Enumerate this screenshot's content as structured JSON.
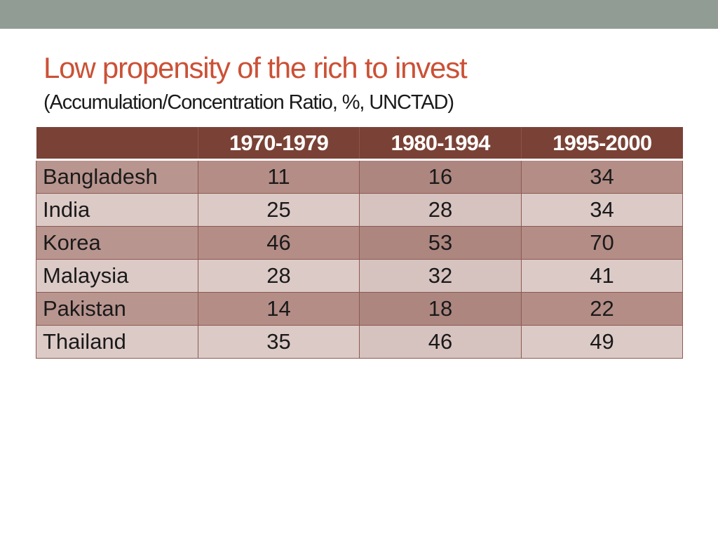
{
  "slide": {
    "title": "Low propensity of the rich to invest",
    "subtitle": "(Accumulation/Concentration Ratio, %, UNCTAD)"
  },
  "table": {
    "headers": [
      "",
      "1970-1979",
      "1980-1994",
      "1995-2000"
    ],
    "rows": [
      [
        "Bangladesh",
        "11",
        "16",
        "34"
      ],
      [
        "India",
        "25",
        "28",
        "34"
      ],
      [
        "Korea",
        "46",
        "53",
        "70"
      ],
      [
        "Malaysia",
        "28",
        "32",
        "41"
      ],
      [
        "Pakistan",
        "14",
        "18",
        "22"
      ],
      [
        "Thailand",
        "35",
        "46",
        "49"
      ]
    ]
  },
  "colors": {
    "top_bar": "#919c95",
    "title": "#cb5136",
    "header_fill": "#7a4236",
    "row_band_dark": "#b48d86",
    "row_band_light": "#dccac7"
  }
}
